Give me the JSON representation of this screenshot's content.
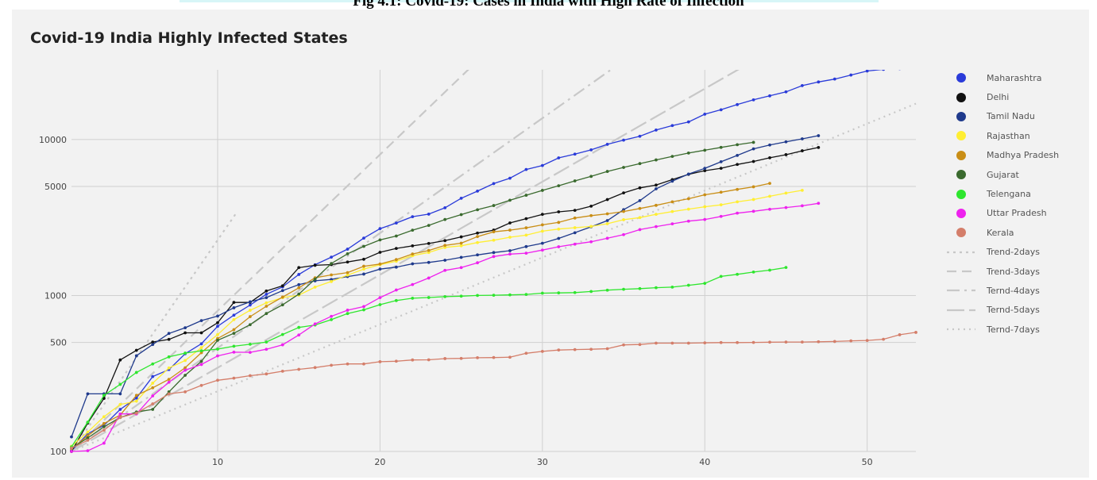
{
  "caption": "Fig 4.1: Covid-19: Cases in India with High Rate of Infection",
  "chart_data": {
    "type": "line",
    "title": "Covid-19 India Highly Infected States",
    "xlabel": "",
    "ylabel": "",
    "y_scale": "log",
    "xlim": [
      1,
      53
    ],
    "ylim": [
      100,
      28000
    ],
    "x_ticks": [
      10,
      20,
      30,
      40,
      50
    ],
    "y_ticks": [
      100,
      500,
      1000,
      5000,
      10000
    ],
    "grid": true,
    "legend_position": "right",
    "series": [
      {
        "name": "Maharashtra",
        "color": "#2a3bd9",
        "marker": true,
        "x": [
          1,
          2,
          3,
          4,
          5,
          6,
          7,
          8,
          9,
          10,
          11,
          12,
          13,
          14,
          15,
          16,
          17,
          18,
          19,
          20,
          21,
          22,
          23,
          24,
          25,
          26,
          27,
          28,
          29,
          30,
          31,
          32,
          33,
          34,
          35,
          36,
          37,
          38,
          39,
          40,
          41,
          42,
          43,
          44,
          45,
          46,
          47,
          48,
          49,
          50,
          51,
          52,
          53
        ],
        "y": [
          101,
          130,
          147,
          186,
          220,
          302,
          335,
          423,
          490,
          635,
          748,
          868,
          1018,
          1135,
          1364,
          1574,
          1761,
          1982,
          2334,
          2684,
          2916,
          3202,
          3323,
          3651,
          4203,
          4669,
          5218,
          5652,
          6427,
          6817,
          7628,
          8068,
          8590,
          9318,
          9915,
          10498,
          11506,
          12296,
          12974,
          14541,
          15525,
          16758,
          17974,
          19063,
          20228,
          22171,
          23401,
          24427,
          25922,
          27524,
          28200,
          28500,
          28800
        ]
      },
      {
        "name": "Delhi",
        "color": "#111111",
        "marker": true,
        "x": [
          1,
          2,
          3,
          4,
          5,
          6,
          7,
          8,
          9,
          10,
          11,
          12,
          13,
          14,
          15,
          16,
          17,
          18,
          19,
          20,
          21,
          22,
          23,
          24,
          25,
          26,
          27,
          28,
          29,
          30,
          31,
          32,
          33,
          34,
          35,
          36,
          37,
          38,
          39,
          40,
          41,
          42,
          43,
          44,
          45,
          46,
          47
        ],
        "y": [
          100,
          152,
          219,
          386,
          445,
          503,
          523,
          576,
          576,
          669,
          903,
          903,
          1069,
          1154,
          1510,
          1561,
          1578,
          1640,
          1707,
          1893,
          2003,
          2081,
          2156,
          2248,
          2376,
          2514,
          2625,
          2918,
          3108,
          3314,
          3439,
          3515,
          3738,
          4122,
          4549,
          4898,
          5104,
          5532,
          5980,
          6318,
          6542,
          6923,
          7233,
          7639,
          7998,
          8470,
          8895
        ]
      },
      {
        "name": "Tamil Nadu",
        "color": "#1f3a8c",
        "marker": true,
        "x": [
          1,
          2,
          3,
          4,
          5,
          6,
          7,
          8,
          9,
          10,
          11,
          12,
          13,
          14,
          15,
          16,
          17,
          18,
          19,
          20,
          21,
          22,
          23,
          24,
          25,
          26,
          27,
          28,
          29,
          30,
          31,
          32,
          33,
          34,
          35,
          36,
          37,
          38,
          39,
          40,
          41,
          42,
          43,
          44,
          45,
          46,
          47
        ],
        "y": [
          124,
          234,
          234,
          234,
          411,
          485,
          571,
          621,
          690,
          738,
          834,
          911,
          969,
          1075,
          1173,
          1242,
          1267,
          1323,
          1372,
          1477,
          1520,
          1596,
          1629,
          1683,
          1755,
          1821,
          1885,
          1937,
          2058,
          2162,
          2323,
          2526,
          2757,
          3023,
          3550,
          4058,
          4829,
          5409,
          6009,
          6535,
          7204,
          7914,
          8718,
          9227,
          9674,
          10108,
          10585
        ]
      },
      {
        "name": "Rajasthan",
        "color": "#ffee33",
        "marker": true,
        "x": [
          1,
          2,
          3,
          4,
          5,
          6,
          7,
          8,
          9,
          10,
          11,
          12,
          13,
          14,
          15,
          16,
          17,
          18,
          19,
          20,
          21,
          22,
          23,
          24,
          25,
          26,
          27,
          28,
          29,
          30,
          31,
          32,
          33,
          34,
          35,
          36,
          37,
          38,
          39,
          40,
          41,
          42,
          43,
          44,
          45,
          46
        ],
        "y": [
          108,
          133,
          167,
          200,
          210,
          274,
          343,
          383,
          463,
          561,
          700,
          804,
          897,
          969,
          1005,
          1131,
          1229,
          1351,
          1478,
          1576,
          1659,
          1801,
          1888,
          2034,
          2083,
          2185,
          2262,
          2364,
          2438,
          2584,
          2666,
          2720,
          2772,
          2886,
          3061,
          3158,
          3317,
          3453,
          3579,
          3708,
          3814,
          3988,
          4126,
          4328,
          4534,
          4727
        ]
      },
      {
        "name": "Madhya Pradesh",
        "color": "#c98e16",
        "marker": true,
        "x": [
          1,
          2,
          3,
          4,
          5,
          6,
          7,
          8,
          9,
          10,
          11,
          12,
          13,
          14,
          15,
          16,
          17,
          18,
          19,
          20,
          21,
          22,
          23,
          24,
          25,
          26,
          27,
          28,
          29,
          30,
          31,
          32,
          33,
          34,
          35,
          36,
          37,
          38,
          39,
          40,
          41,
          42,
          43,
          44
        ],
        "y": [
          104,
          126,
          151,
          171,
          229,
          256,
          290,
          344,
          430,
          530,
          604,
          732,
          853,
          977,
          1120,
          1299,
          1355,
          1402,
          1540,
          1592,
          1699,
          1846,
          1945,
          2096,
          2165,
          2387,
          2561,
          2625,
          2715,
          2837,
          2942,
          3138,
          3252,
          3341,
          3457,
          3614,
          3785,
          3986,
          4173,
          4426,
          4595,
          4789,
          4977,
          5236
        ]
      },
      {
        "name": "Gujarat",
        "color": "#3a6a2e",
        "marker": true,
        "x": [
          1,
          2,
          3,
          4,
          5,
          6,
          7,
          8,
          9,
          10,
          11,
          12,
          13,
          14,
          15,
          16,
          17,
          18,
          19,
          20,
          21,
          22,
          23,
          24,
          25,
          26,
          27,
          28,
          29,
          30,
          31,
          32,
          33,
          34,
          35,
          36,
          37,
          38,
          39,
          40,
          41,
          42,
          43
        ],
        "y": [
          105,
          122,
          144,
          165,
          179,
          186,
          241,
          308,
          378,
          516,
          572,
          650,
          766,
          871,
          1021,
          1272,
          1604,
          1851,
          2066,
          2272,
          2407,
          2624,
          2815,
          3071,
          3301,
          3548,
          3774,
          4082,
          4395,
          4721,
          5054,
          5428,
          5804,
          6245,
          6625,
          7012,
          7402,
          7796,
          8195,
          8542,
          8903,
          9268,
          9592
        ]
      },
      {
        "name": "Telengana",
        "color": "#2ee62e",
        "marker": true,
        "x": [
          1,
          2,
          3,
          4,
          5,
          6,
          7,
          8,
          9,
          10,
          11,
          12,
          13,
          14,
          15,
          16,
          17,
          18,
          19,
          20,
          21,
          22,
          23,
          24,
          25,
          26,
          27,
          28,
          29,
          30,
          31,
          32,
          33,
          34,
          35,
          36,
          37,
          38,
          39,
          40,
          41,
          42,
          43,
          44,
          45
        ],
        "y": [
          107,
          154,
          229,
          269,
          321,
          364,
          404,
          427,
          442,
          453,
          473,
          487,
          503,
          562,
          624,
          647,
          700,
          766,
          809,
          873,
          928,
          960,
          970,
          983,
          990,
          1001,
          1004,
          1009,
          1016,
          1035,
          1039,
          1044,
          1061,
          1082,
          1096,
          1107,
          1122,
          1132,
          1163,
          1196,
          1326,
          1367,
          1414,
          1454,
          1512
        ]
      },
      {
        "name": "Uttar Pradesh",
        "color": "#ee22ee",
        "marker": true,
        "x": [
          1,
          2,
          3,
          4,
          5,
          6,
          7,
          8,
          9,
          10,
          11,
          12,
          13,
          14,
          15,
          16,
          17,
          18,
          19,
          20,
          21,
          22,
          23,
          24,
          25,
          26,
          27,
          28,
          29,
          30,
          31,
          32,
          33,
          34,
          35,
          36,
          37,
          38,
          39,
          40,
          41,
          42,
          43,
          44,
          45,
          46,
          47
        ],
        "y": [
          100,
          101,
          113,
          174,
          174,
          227,
          278,
          332,
          361,
          410,
          433,
          432,
          452,
          483,
          558,
          657,
          735,
          805,
          849,
          969,
          1084,
          1176,
          1294,
          1449,
          1510,
          1621,
          1778,
          1843,
          1868,
          1955,
          2053,
          2134,
          2211,
          2328,
          2455,
          2645,
          2766,
          2880,
          2998,
          3071,
          3214,
          3373,
          3467,
          3573,
          3664,
          3759,
          3900
        ]
      },
      {
        "name": "Kerala",
        "color": "#d47e6a",
        "marker": true,
        "x": [
          1,
          2,
          3,
          4,
          5,
          6,
          7,
          8,
          9,
          10,
          11,
          12,
          13,
          14,
          15,
          16,
          17,
          18,
          19,
          20,
          21,
          22,
          23,
          24,
          25,
          26,
          27,
          28,
          29,
          30,
          31,
          32,
          33,
          34,
          35,
          36,
          37,
          38,
          39,
          40,
          41,
          42,
          43,
          44,
          45,
          46,
          47,
          48,
          49,
          50,
          51,
          52,
          53
        ],
        "y": [
          105,
          118,
          137,
          165,
          176,
          202,
          234,
          241,
          265,
          286,
          295,
          306,
          314,
          327,
          336,
          345,
          357,
          364,
          364,
          376,
          379,
          386,
          387,
          394,
          395,
          399,
          400,
          402,
          426,
          438,
          447,
          450,
          452,
          456,
          482,
          485,
          495,
          495,
          495,
          497,
          499,
          499,
          500,
          502,
          503,
          503,
          505,
          507,
          512,
          515,
          524,
          560,
          580
        ]
      },
      {
        "name": "Trend-2days",
        "color": "#c8c8c8",
        "dash": "3,5",
        "x": [
          1,
          11.2
        ],
        "y": [
          100,
          3440
        ]
      },
      {
        "name": "Trend-3days",
        "color": "#c8c8c8",
        "dash": "12,7",
        "x": [
          1,
          26
        ],
        "y": [
          100,
          32000
        ]
      },
      {
        "name": "Ternd-4days",
        "color": "#c8c8c8",
        "dash": "16,6,3,6",
        "x": [
          1,
          35
        ],
        "y": [
          100,
          32000
        ]
      },
      {
        "name": "Ternd-5days",
        "color": "#c8c8c8",
        "dash": "22,6",
        "x": [
          1,
          43
        ],
        "y": [
          100,
          32000
        ]
      },
      {
        "name": "Ternd-7days",
        "color": "#c8c8c8",
        "dash": "2,5",
        "x": [
          1,
          53
        ],
        "y": [
          100,
          17000
        ]
      }
    ]
  }
}
